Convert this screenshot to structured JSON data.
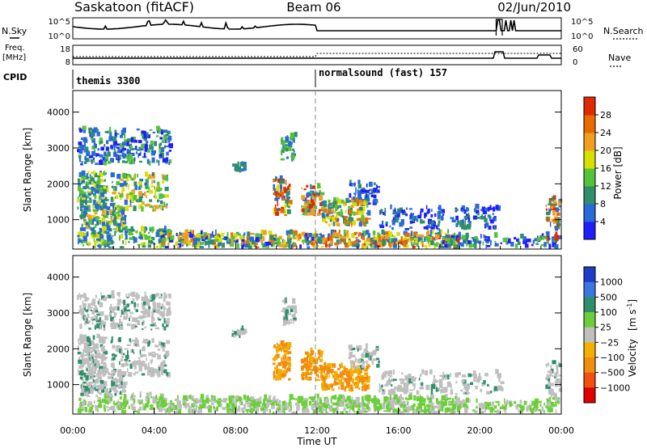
{
  "header": {
    "station": "Saskatoon (fitACF)",
    "beam": "Beam 06",
    "date": "02/Jun/2010"
  },
  "side_labels": {
    "nsky": "N.Sky",
    "freq_line1": "Freq.",
    "freq_line2": "[MHz]",
    "cpid": "CPID",
    "nsearch": "N.Search",
    "nave": "Nave"
  },
  "cpid_segments": [
    {
      "label": "themis 3300",
      "start_hour": 0,
      "end_hour": 12
    },
    {
      "label": "normalsound (fast) 157",
      "start_hour": 12,
      "end_hour": 24
    }
  ],
  "chart_data": [
    {
      "type": "line",
      "name": "noise-panel",
      "y_left_ticks": [
        "10^5",
        "10^0"
      ],
      "y_right_ticks": [
        "10^5",
        "10^0"
      ],
      "xlim": [
        0,
        24
      ]
    },
    {
      "type": "line",
      "name": "frequency-panel",
      "y_left_ticks": [
        "18",
        "8"
      ],
      "y_right_ticks": [
        "60",
        "0"
      ],
      "xlim": [
        0,
        24
      ]
    },
    {
      "type": "heatmap",
      "name": "power-panel",
      "ylabel": "Slant Range [km]",
      "ylim": [
        180,
        4600
      ],
      "y_ticks": [
        1000,
        2000,
        3000,
        4000
      ],
      "xlim": [
        0,
        24
      ],
      "colorbar": {
        "label": "Power [dB]",
        "ticks": [
          "4",
          "8",
          "12",
          "16",
          "20",
          "24",
          "28"
        ],
        "colors": [
          "#1e1eff",
          "#2a6ad8",
          "#2f8f6a",
          "#55c23a",
          "#d9e000",
          "#f0a020",
          "#e86a00",
          "#e02a00"
        ]
      }
    },
    {
      "type": "heatmap",
      "name": "velocity-panel",
      "ylabel": "Slant Range [km]",
      "ylim": [
        180,
        4600
      ],
      "y_ticks": [
        1000,
        2000,
        3000,
        4000
      ],
      "xlim": [
        0,
        24
      ],
      "xlabel": "Time UT",
      "x_ticks": [
        "00:00",
        "04:00",
        "08:00",
        "12:00",
        "16:00",
        "20:00",
        "00:00"
      ],
      "colorbar": {
        "label_main": "Velocity",
        "label_unit": "[m s",
        "label_sup": "-1",
        "label_close": "]",
        "ticks": [
          "1000",
          "500",
          "100",
          "25",
          "−25",
          "−100",
          "−500",
          "−1000"
        ],
        "colors": [
          "#1e3cc8",
          "#3a78e0",
          "#2f8f6a",
          "#6ccf3a",
          "#bfbfbf",
          "#f2b000",
          "#f08c10",
          "#f05010",
          "#e00000"
        ]
      }
    }
  ]
}
